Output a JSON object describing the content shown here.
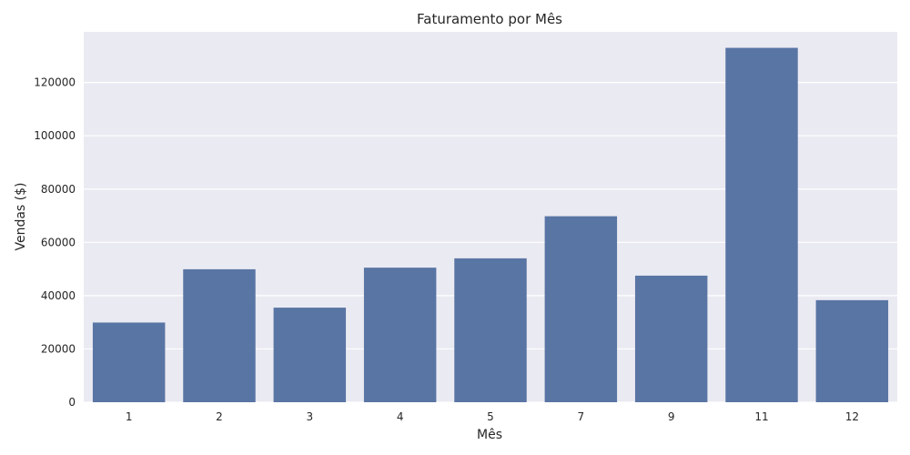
{
  "chart_data": {
    "type": "bar",
    "title": "Faturamento por Mês",
    "xlabel": "Mês",
    "ylabel": "Vendas ($)",
    "categories": [
      "1",
      "2",
      "3",
      "4",
      "5",
      "7",
      "9",
      "11",
      "12"
    ],
    "values": [
      29900,
      49900,
      35500,
      50500,
      54000,
      69800,
      47500,
      133000,
      38300
    ],
    "ylim": [
      0,
      139000
    ],
    "yticks": [
      0,
      20000,
      40000,
      60000,
      80000,
      100000,
      120000
    ],
    "ytick_labels": [
      "0",
      "20000",
      "40000",
      "60000",
      "80000",
      "100000",
      "120000"
    ],
    "grid": true,
    "colors": {
      "bar": "#5975a4",
      "plot_background": "#eaeaf2",
      "grid": "#ffffff"
    }
  }
}
